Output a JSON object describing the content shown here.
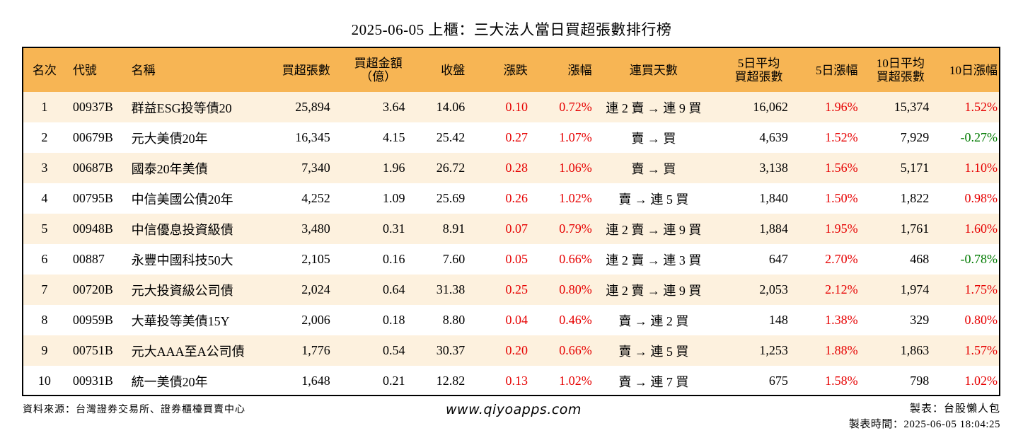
{
  "title": "2025-06-05 上櫃：三大法人當日買超張數排行榜",
  "headers": {
    "rank": "名次",
    "code": "代號",
    "name": "名稱",
    "buy_lots": "買超張數",
    "buy_amount_l1": "買超金額",
    "buy_amount_l2": "（億）",
    "close": "收盤",
    "change": "漲跌",
    "change_pct": "漲幅",
    "streak": "連買天數",
    "avg5_l1": "5日平均",
    "avg5_l2": "買超張數",
    "pct5": "5日漲幅",
    "avg10_l1": "10日平均",
    "avg10_l2": "買超張數",
    "pct10": "10日漲幅"
  },
  "rows": [
    {
      "rank": "1",
      "code": "00937B",
      "name": "群益ESG投等債20",
      "buy_lots": "25,894",
      "amount": "3.64",
      "close": "14.06",
      "change": "0.10",
      "pct": "0.72%",
      "streak": "連 2 賣 → 連 9 買",
      "avg5": "16,062",
      "pct5": "1.96%",
      "avg10": "15,374",
      "pct10": "1.52%"
    },
    {
      "rank": "2",
      "code": "00679B",
      "name": "元大美債20年",
      "buy_lots": "16,345",
      "amount": "4.15",
      "close": "25.42",
      "change": "0.27",
      "pct": "1.07%",
      "streak": "賣 → 買",
      "avg5": "4,639",
      "pct5": "1.52%",
      "avg10": "7,929",
      "pct10": "-0.27%"
    },
    {
      "rank": "3",
      "code": "00687B",
      "name": "國泰20年美債",
      "buy_lots": "7,340",
      "amount": "1.96",
      "close": "26.72",
      "change": "0.28",
      "pct": "1.06%",
      "streak": "賣 → 買",
      "avg5": "3,138",
      "pct5": "1.56%",
      "avg10": "5,171",
      "pct10": "1.10%"
    },
    {
      "rank": "4",
      "code": "00795B",
      "name": "中信美國公債20年",
      "buy_lots": "4,252",
      "amount": "1.09",
      "close": "25.69",
      "change": "0.26",
      "pct": "1.02%",
      "streak": "賣 → 連 5 買",
      "avg5": "1,840",
      "pct5": "1.50%",
      "avg10": "1,822",
      "pct10": "0.98%"
    },
    {
      "rank": "5",
      "code": "00948B",
      "name": "中信優息投資級債",
      "buy_lots": "3,480",
      "amount": "0.31",
      "close": "8.91",
      "change": "0.07",
      "pct": "0.79%",
      "streak": "連 2 賣 → 連 9 買",
      "avg5": "1,884",
      "pct5": "1.95%",
      "avg10": "1,761",
      "pct10": "1.60%"
    },
    {
      "rank": "6",
      "code": "00887",
      "name": "永豐中國科技50大",
      "buy_lots": "2,105",
      "amount": "0.16",
      "close": "7.60",
      "change": "0.05",
      "pct": "0.66%",
      "streak": "連 2 賣 → 連 3 買",
      "avg5": "647",
      "pct5": "2.70%",
      "avg10": "468",
      "pct10": "-0.78%"
    },
    {
      "rank": "7",
      "code": "00720B",
      "name": "元大投資級公司債",
      "buy_lots": "2,024",
      "amount": "0.64",
      "close": "31.38",
      "change": "0.25",
      "pct": "0.80%",
      "streak": "連 2 賣 → 連 9 買",
      "avg5": "2,053",
      "pct5": "2.12%",
      "avg10": "1,974",
      "pct10": "1.75%"
    },
    {
      "rank": "8",
      "code": "00959B",
      "name": "大華投等美債15Y",
      "buy_lots": "2,006",
      "amount": "0.18",
      "close": "8.80",
      "change": "0.04",
      "pct": "0.46%",
      "streak": "賣 → 連 2 買",
      "avg5": "148",
      "pct5": "1.38%",
      "avg10": "329",
      "pct10": "0.80%"
    },
    {
      "rank": "9",
      "code": "00751B",
      "name": "元大AAA至A公司債",
      "buy_lots": "1,776",
      "amount": "0.54",
      "close": "30.37",
      "change": "0.20",
      "pct": "0.66%",
      "streak": "賣 → 連 5 買",
      "avg5": "1,253",
      "pct5": "1.88%",
      "avg10": "1,863",
      "pct10": "1.57%"
    },
    {
      "rank": "10",
      "code": "00931B",
      "name": "統一美債20年",
      "buy_lots": "1,648",
      "amount": "0.21",
      "close": "12.82",
      "change": "0.13",
      "pct": "1.02%",
      "streak": "賣 → 連 7 買",
      "avg5": "675",
      "pct5": "1.58%",
      "avg10": "798",
      "pct10": "1.02%"
    }
  ],
  "footer": {
    "source": "資料來源：台灣證券交易所、證券櫃檯買賣中心",
    "website": "www.qiyoapps.com",
    "maker": "製表：台股懶人包",
    "made_time": "製表時間：2025-06-05 18:04:25"
  },
  "colors": {
    "header_bg": "#f7b554",
    "alt_row_bg": "#fdf1de",
    "up": "#e60000",
    "down": "#007a00"
  }
}
